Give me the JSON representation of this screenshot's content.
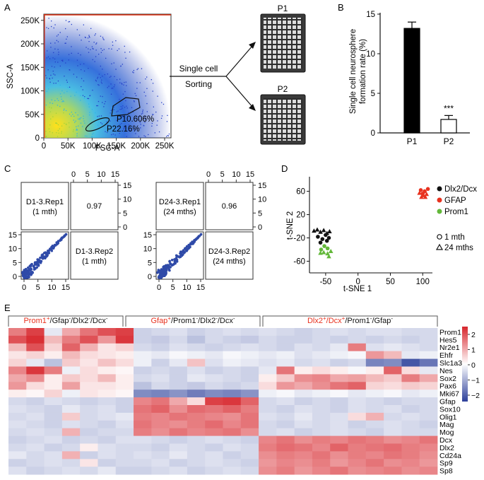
{
  "panels": {
    "A": {
      "label": "A",
      "xlabel": "FSC-A",
      "ylabel": "SSC-A",
      "xticks": [
        "0",
        "50K",
        "100K",
        "150K",
        "200K",
        "250K"
      ],
      "yticks": [
        "0",
        "50K",
        "100K",
        "150K",
        "200K",
        "250K"
      ],
      "gates": [
        {
          "name": "P1",
          "pct": "0.606%",
          "text": "P10.606%"
        },
        {
          "name": "P2",
          "pct": "2.16%",
          "text": "P22.16%"
        }
      ],
      "sorting_line1": "Single cell",
      "sorting_line2": "Sorting",
      "plates": [
        "P1",
        "P2"
      ]
    },
    "B": {
      "label": "B",
      "ylabel_line1": "Single cell neurosphere",
      "ylabel_line2": "formation rate (%)",
      "categories": [
        "P1",
        "P2"
      ],
      "values": [
        13.2,
        1.7
      ],
      "errors": [
        0.8,
        0.5
      ],
      "yticks": [
        "0",
        "5",
        "10",
        "15"
      ],
      "ylim": [
        0,
        15
      ],
      "significance": "***"
    },
    "C": {
      "label": "C",
      "matrices": [
        {
          "rep1": "D1-3.Rep1",
          "rep1_sub": "(1 mth)",
          "rep2": "D1-3.Rep2",
          "rep2_sub": "(1 mth)",
          "corr": "0.97"
        },
        {
          "rep1": "D24-3.Rep1",
          "rep1_sub": "(24 mths)",
          "rep2": "D24-3.Rep2",
          "rep2_sub": "(24 mths)",
          "corr": "0.96"
        }
      ],
      "ticks": [
        "0",
        "5",
        "10",
        "15"
      ]
    },
    "D": {
      "label": "D",
      "xlabel": "t-SNE 1",
      "ylabel": "t-SNE 2",
      "xticks": [
        "-50",
        "0",
        "50",
        "100"
      ],
      "yticks": [
        "60",
        "20",
        "-20",
        "-60"
      ],
      "legend": [
        {
          "label": "Dlx2/Dcx",
          "color": "#111111"
        },
        {
          "label": "GFAP",
          "color": "#e8321f"
        },
        {
          "label": "Prom1",
          "color": "#63b83a"
        }
      ],
      "shape_legend": [
        {
          "label": "1 mth"
        },
        {
          "label": "24 mths"
        }
      ]
    },
    "E": {
      "label": "E",
      "groups": [
        {
          "lead": "Prom1",
          "lead_sup": "+",
          "rest": "/Gfap",
          "rest_sup": "-",
          "rest2": "/Dlx2",
          "rest2_sup": "-",
          "rest3": "/Dcx",
          "rest3_sup": "-"
        },
        {
          "lead": "Gfap",
          "lead_sup": "+",
          "rest": "/Prom1",
          "rest_sup": "-",
          "rest2": "/Dlx2",
          "rest2_sup": "-",
          "rest3": "/Dcx",
          "rest3_sup": "-"
        },
        {
          "lead": "Dlx2",
          "lead_sup": "+",
          "rest": "/Dcx",
          "rest_sup": "+",
          "rest2": "/Prom1",
          "rest2_sup": "-",
          "rest3": "/Gfap",
          "rest3_sup": "-"
        }
      ],
      "genes": [
        "Prom1",
        "Hes5",
        "Nr2e1",
        "Ehfr",
        "Slc1a3",
        "Nes",
        "Sox2",
        "Pax6",
        "Mki67",
        "Gfap",
        "Sox10",
        "Olig1",
        "Mag",
        "Mog",
        "Dcx",
        "Dlx2",
        "Cd24a",
        "Sp9",
        "Sp8"
      ],
      "colorbar_ticks": [
        "2",
        "1",
        "0",
        "−1",
        "−2"
      ]
    }
  },
  "chart_data": [
    {
      "type": "bar",
      "title": "",
      "categories": [
        "P1",
        "P2"
      ],
      "values": [
        13.2,
        1.7
      ],
      "errors": [
        0.8,
        0.5
      ],
      "xlabel": "",
      "ylabel": "Single cell neurosphere formation rate (%)",
      "ylim": [
        0,
        15
      ]
    },
    {
      "type": "scatter",
      "title": "",
      "xlabel": "t-SNE 1",
      "ylabel": "t-SNE 2",
      "xlim": [
        -75,
        115
      ],
      "ylim": [
        -80,
        85
      ],
      "series": [
        {
          "name": "Dlx2/Dcx 1 mth",
          "shape": "circle",
          "color": "#111111",
          "points": [
            [
              -62,
              -18
            ],
            [
              -55,
              -22
            ],
            [
              -48,
              -25
            ],
            [
              -58,
              -28
            ],
            [
              -50,
              -15
            ],
            [
              -45,
              -20
            ]
          ]
        },
        {
          "name": "Dlx2/Dcx 24 mths",
          "shape": "triangle",
          "color": "#111111",
          "points": [
            [
              -68,
              -8
            ],
            [
              -63,
              -6
            ],
            [
              -58,
              -10
            ],
            [
              -53,
              -7
            ],
            [
              -48,
              -12
            ],
            [
              -44,
              -9
            ]
          ]
        },
        {
          "name": "GFAP 1 mth",
          "shape": "circle",
          "color": "#e8321f",
          "points": [
            [
              97,
              62
            ],
            [
              103,
              60
            ],
            [
              108,
              64
            ],
            [
              100,
              56
            ]
          ]
        },
        {
          "name": "GFAP 24 mths",
          "shape": "triangle",
          "color": "#e8321f",
          "points": [
            [
              95,
              57
            ],
            [
              101,
              53
            ],
            [
              106,
              55
            ],
            [
              98,
              50
            ],
            [
              104,
              50
            ]
          ]
        },
        {
          "name": "Prom1 1 mth",
          "shape": "circle",
          "color": "#63b83a",
          "points": [
            [
              -52,
              -34
            ],
            [
              -47,
              -38
            ],
            [
              -57,
              -40
            ]
          ]
        },
        {
          "name": "Prom1 24 mths",
          "shape": "triangle",
          "color": "#63b83a",
          "points": [
            [
              -53,
              -45
            ],
            [
              -47,
              -47
            ],
            [
              -42,
              -43
            ],
            [
              -58,
              -46
            ],
            [
              -45,
              -52
            ]
          ]
        }
      ]
    },
    {
      "type": "heatmap",
      "title": "",
      "rows": [
        "Prom1",
        "Hes5",
        "Nr2e1",
        "Ehfr",
        "Slc1a3",
        "Nes",
        "Sox2",
        "Pax6",
        "Mki67",
        "Gfap",
        "Sox10",
        "Olig1",
        "Mag",
        "Mog",
        "Dcx",
        "Dlx2",
        "Cd24a",
        "Sp9",
        "Sp8"
      ],
      "zlim": [
        -2.5,
        2.5
      ],
      "matrix": [
        [
          1.5,
          2.2,
          -0.3,
          1.0,
          1.6,
          2.0,
          2.2,
          -0.6,
          -0.5,
          -0.4,
          -0.6,
          -0.5,
          -0.4,
          -0.5,
          -0.4,
          -0.5,
          -0.6,
          -0.5,
          -0.4,
          -0.5,
          -0.4,
          -0.4,
          -0.5,
          -0.5
        ],
        [
          2.0,
          2.4,
          0.8,
          1.5,
          2.0,
          1.2,
          2.3,
          -0.6,
          -0.7,
          -0.5,
          -0.8,
          -0.5,
          -0.6,
          -0.7,
          -0.5,
          -0.6,
          -0.6,
          -0.5,
          -0.6,
          -0.5,
          -0.6,
          -0.5,
          -0.6,
          -0.5
        ],
        [
          0.8,
          2.0,
          0.5,
          1.8,
          0.9,
          0.3,
          0.5,
          -0.5,
          -0.6,
          -0.4,
          -0.5,
          -0.6,
          -0.5,
          -0.4,
          -0.5,
          -0.6,
          -0.4,
          -0.5,
          -0.3,
          1.5,
          -0.4,
          -0.3,
          -0.4,
          -0.5
        ],
        [
          0.3,
          0.5,
          0.2,
          0.8,
          0.4,
          0.3,
          0.2,
          -0.2,
          -0.3,
          -0.1,
          -0.2,
          -0.3,
          -0.1,
          -0.2,
          -0.3,
          -0.2,
          -0.4,
          -0.3,
          -0.2,
          -0.1,
          1.2,
          0.8,
          -0.3,
          -0.2
        ],
        [
          0.5,
          -0.3,
          -0.8,
          0.6,
          0.3,
          0.7,
          0.4,
          -0.2,
          -0.6,
          -0.3,
          0.7,
          -0.4,
          -0.2,
          -0.3,
          -0.4,
          -0.3,
          -0.5,
          -0.4,
          -0.6,
          -0.5,
          -1.6,
          -1.5,
          -2.2,
          -1.8
        ],
        [
          1.4,
          2.3,
          1.5,
          -0.2,
          0.4,
          0.2,
          0.1,
          -0.6,
          -0.5,
          -0.6,
          -0.4,
          -0.6,
          -0.5,
          -0.6,
          -0.3,
          1.6,
          0.2,
          0.4,
          0.2,
          -0.1,
          0.2,
          1.8,
          0.4,
          -0.3
        ],
        [
          1.0,
          1.3,
          0.2,
          0.6,
          0.4,
          0.8,
          0.2,
          -0.5,
          -0.4,
          -0.6,
          -0.3,
          -0.4,
          -0.5,
          -0.6,
          0.2,
          0.6,
          1.3,
          1.4,
          1.0,
          1.1,
          0.8,
          0.6,
          1.5,
          1.0
        ],
        [
          1.2,
          0.4,
          0.2,
          1.1,
          0.3,
          0.3,
          0.2,
          -0.8,
          -0.5,
          -0.6,
          -0.7,
          -0.5,
          -0.6,
          -0.5,
          0.4,
          1.2,
          1.0,
          1.3,
          1.6,
          1.8,
          0.5,
          0.4,
          0.6,
          0.5
        ],
        [
          0.2,
          0.1,
          0.5,
          -0.2,
          0.3,
          0.2,
          0.1,
          -1.5,
          -1.6,
          -1.4,
          -1.7,
          -1.5,
          -1.6,
          -1.4,
          -0.2,
          -0.1,
          -0.3,
          -0.2,
          -0.1,
          -0.3,
          -0.2,
          -0.1,
          -0.3,
          -0.2
        ],
        [
          -0.5,
          -0.6,
          -0.4,
          -0.5,
          -0.6,
          -0.5,
          -0.6,
          1.4,
          1.6,
          1.0,
          0.4,
          2.2,
          2.3,
          1.8,
          -0.5,
          -0.4,
          -0.6,
          -0.5,
          -0.6,
          -0.4,
          -0.5,
          -0.6,
          -0.5,
          -0.5
        ],
        [
          -0.4,
          -0.5,
          -0.6,
          -0.3,
          -0.5,
          -0.4,
          -0.6,
          1.6,
          1.8,
          1.3,
          1.7,
          1.6,
          1.8,
          1.5,
          -0.5,
          -0.6,
          -0.4,
          -0.5,
          -0.6,
          -0.4,
          -0.5,
          -0.4,
          -0.6,
          -0.5
        ],
        [
          -0.5,
          -0.4,
          -0.6,
          0.6,
          -0.5,
          -0.4,
          -0.3,
          1.5,
          1.4,
          1.6,
          1.5,
          1.4,
          1.3,
          1.6,
          -0.4,
          -0.5,
          -0.3,
          -0.5,
          -0.4,
          0.4,
          0.9,
          -0.5,
          -0.4,
          -0.5
        ],
        [
          -0.4,
          -0.5,
          -0.6,
          -0.4,
          -0.5,
          -0.6,
          -0.4,
          1.6,
          1.4,
          1.3,
          1.5,
          1.7,
          1.4,
          1.6,
          -0.5,
          -0.6,
          -0.4,
          -0.5,
          -0.4,
          -0.6,
          -0.5,
          -0.4,
          -0.5,
          -0.6
        ],
        [
          -0.5,
          -0.4,
          -0.5,
          0.9,
          -0.6,
          -0.5,
          -0.5,
          1.5,
          1.3,
          1.6,
          1.4,
          1.5,
          1.6,
          1.3,
          -0.5,
          -0.4,
          -0.6,
          -0.5,
          -0.4,
          -0.5,
          -0.6,
          -0.4,
          -0.5,
          -0.5
        ],
        [
          -0.6,
          -0.5,
          -0.4,
          -0.6,
          -0.5,
          -0.6,
          -0.4,
          -0.4,
          -0.5,
          -0.6,
          -0.5,
          -0.4,
          -0.5,
          -0.6,
          1.4,
          1.6,
          1.3,
          1.5,
          1.4,
          1.6,
          1.5,
          1.3,
          1.4,
          1.6
        ],
        [
          -0.5,
          -0.4,
          -0.6,
          -0.5,
          0.2,
          -0.4,
          -0.5,
          -0.5,
          -0.6,
          -0.4,
          -0.5,
          -0.6,
          -0.4,
          -0.5,
          1.5,
          1.7,
          1.6,
          1.4,
          1.8,
          1.5,
          1.6,
          1.7,
          1.5,
          1.4
        ],
        [
          -0.3,
          -0.5,
          -0.4,
          0.9,
          -0.6,
          -0.4,
          -0.5,
          -0.4,
          -0.5,
          -0.3,
          -0.5,
          -0.4,
          -0.6,
          -0.5,
          1.3,
          1.5,
          1.4,
          1.6,
          1.3,
          1.5,
          1.4,
          1.6,
          1.5,
          1.3
        ],
        [
          -0.6,
          -0.5,
          -0.4,
          -0.5,
          0.3,
          -0.6,
          -0.5,
          -0.5,
          -0.4,
          -0.6,
          -0.5,
          -0.4,
          -0.5,
          -0.6,
          1.2,
          1.4,
          1.3,
          1.5,
          1.2,
          1.4,
          1.6,
          1.3,
          1.4,
          1.2
        ],
        [
          -0.4,
          -0.6,
          -0.5,
          -0.4,
          -0.5,
          -0.3,
          -0.6,
          -0.6,
          -0.5,
          -0.4,
          -0.6,
          -0.5,
          -0.4,
          -0.5,
          1.3,
          1.5,
          1.2,
          1.4,
          1.6,
          1.3,
          1.4,
          1.5,
          1.3,
          1.4
        ]
      ]
    }
  ]
}
